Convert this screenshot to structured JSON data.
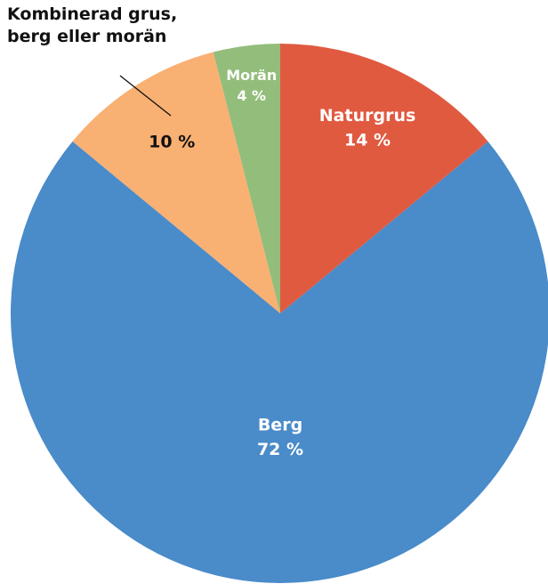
{
  "chart_data": {
    "type": "pie",
    "categories": [
      "Naturgrus",
      "Berg",
      "Kombinerad grus, berg eller morän",
      "Morän"
    ],
    "values": [
      14,
      72,
      10,
      4
    ],
    "value_labels": [
      "14 %",
      "72 %",
      "10 %",
      "4 %"
    ],
    "colors": [
      "#e05a40",
      "#4a8bc9",
      "#f9b073",
      "#93bd7a"
    ]
  }
}
